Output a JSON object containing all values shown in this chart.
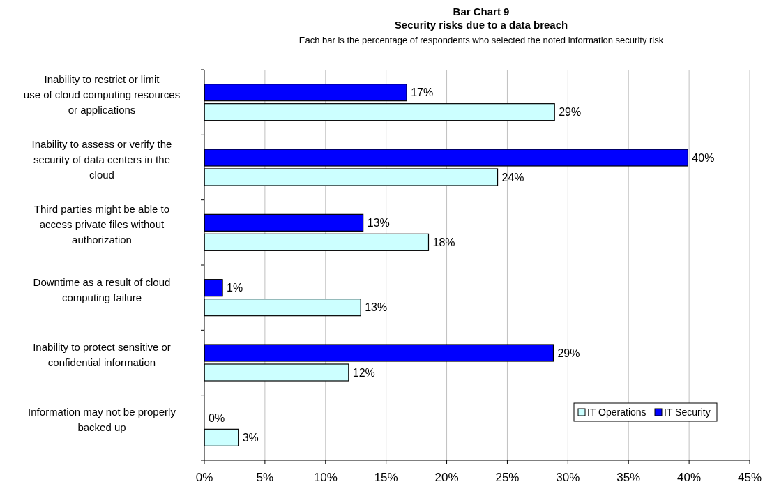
{
  "chart_data": {
    "type": "bar",
    "orientation": "horizontal",
    "title": "Bar Chart 9\nSecurity risks due to a data breach",
    "subtitle": "Each bar is the percentage of respondents who selected the noted information security risk",
    "categories": [
      "Inability to restrict or limit use of cloud computing resources or applications",
      "Inability to assess or verify the security of data centers in the cloud",
      "Third parties might be able to access private files without authorization",
      "Downtime as a result of cloud computing failure",
      "Inability to protect sensitive or confidential information",
      "Information may not be properly backed up"
    ],
    "series": [
      {
        "name": "IT Security",
        "color": "#0000ff",
        "values": [
          16.7,
          39.9,
          13.1,
          1.5,
          28.8,
          0
        ],
        "value_labels": [
          "17%",
          "40%",
          "13%",
          "1%",
          "29%",
          "0%"
        ]
      },
      {
        "name": "IT Operations",
        "color": "#ccffff",
        "values": [
          28.9,
          24.2,
          18.5,
          12.9,
          11.9,
          2.8
        ],
        "value_labels": [
          "29%",
          "24%",
          "18%",
          "13%",
          "12%",
          "3%"
        ]
      }
    ],
    "xlim": [
      0,
      45
    ],
    "xticks": [
      {
        "value": 0,
        "label": "0%"
      },
      {
        "value": 5,
        "label": "5%"
      },
      {
        "value": 10,
        "label": "10%"
      },
      {
        "value": 15,
        "label": "15%"
      },
      {
        "value": 20,
        "label": "20%"
      },
      {
        "value": 25,
        "label": "25%"
      },
      {
        "value": 30,
        "label": "30%"
      },
      {
        "value": 35,
        "label": "35%"
      },
      {
        "value": 40,
        "label": "40%"
      },
      {
        "value": 45,
        "label": "45%"
      }
    ],
    "grid": "x",
    "legend": "bottom right"
  }
}
